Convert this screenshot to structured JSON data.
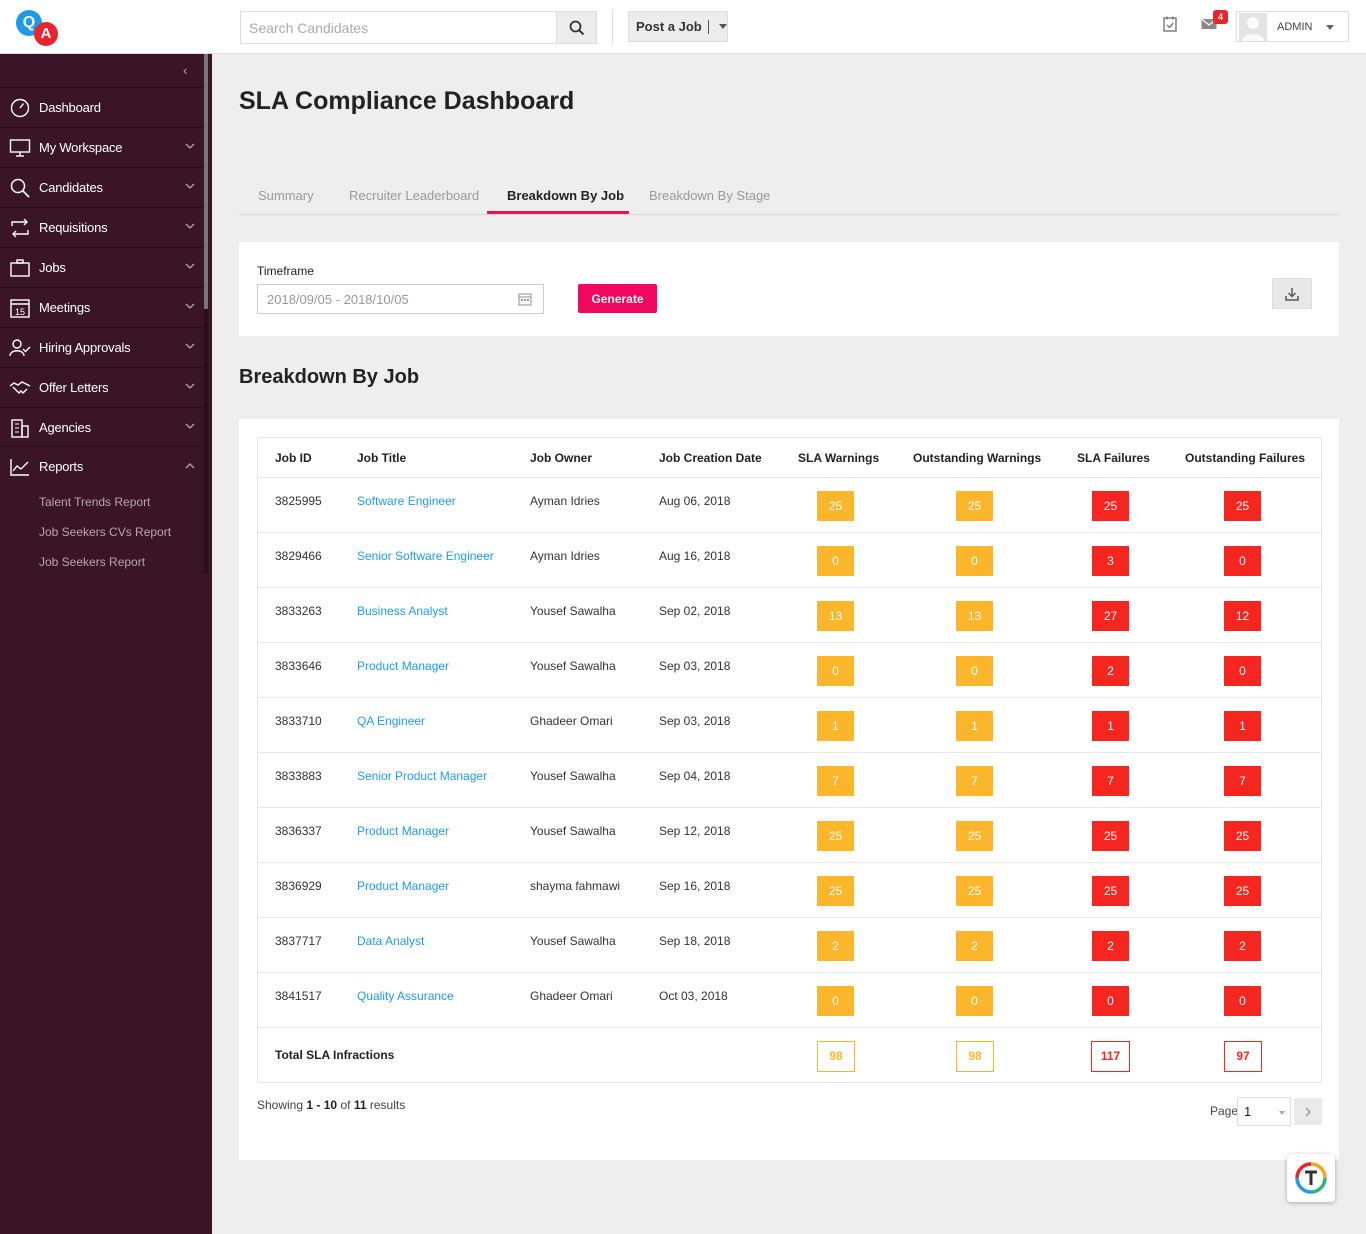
{
  "header": {
    "logo_left": "Q",
    "logo_right": "A",
    "search_placeholder": "Search Candidates",
    "post_job_label": "Post a Job",
    "notification_count": "4",
    "user_name": "ADMIN"
  },
  "sidebar": {
    "items": [
      {
        "label": "Dashboard",
        "icon": "gauge-icon"
      },
      {
        "label": "My Workspace",
        "icon": "monitor-icon"
      },
      {
        "label": "Candidates",
        "icon": "search-icon"
      },
      {
        "label": "Requisitions",
        "icon": "swap-icon"
      },
      {
        "label": "Jobs",
        "icon": "briefcase-icon"
      },
      {
        "label": "Meetings",
        "icon": "calendar-icon",
        "icon_text": "15"
      },
      {
        "label": "Hiring Approvals",
        "icon": "user-check-icon"
      },
      {
        "label": "Offer Letters",
        "icon": "handshake-icon"
      },
      {
        "label": "Agencies",
        "icon": "building-icon"
      },
      {
        "label": "Reports",
        "icon": "trend-icon"
      }
    ],
    "report_subitems": [
      "Talent Trends Report",
      "Job Seekers CVs Report",
      "Job Seekers Report"
    ]
  },
  "page": {
    "title": "SLA Compliance Dashboard",
    "tabs": [
      "Summary",
      "Recruiter Leaderboard",
      "Breakdown By Job",
      "Breakdown By Stage"
    ],
    "active_tab": "Breakdown By Job",
    "timeframe_label": "Timeframe",
    "timeframe_value": "2018/09/05 - 2018/10/05",
    "generate_label": "Generate",
    "section_title": "Breakdown By Job"
  },
  "table": {
    "columns": [
      "Job ID",
      "Job Title",
      "Job Owner",
      "Job Creation Date",
      "SLA Warnings",
      "Outstanding Warnings",
      "SLA Failures",
      "Outstanding Failures"
    ],
    "rows": [
      {
        "id": "3825995",
        "title": "Software Engineer",
        "owner": "Ayman Idries",
        "date": "Aug 06, 2018",
        "sla_w": "25",
        "out_w": "25",
        "sla_f": "25",
        "out_f": "25"
      },
      {
        "id": "3829466",
        "title": "Senior Software Engineer",
        "owner": "Ayman Idries",
        "date": "Aug 16, 2018",
        "sla_w": "0",
        "out_w": "0",
        "sla_f": "3",
        "out_f": "0"
      },
      {
        "id": "3833263",
        "title": "Business Analyst",
        "owner": "Yousef Sawalha",
        "date": "Sep 02, 2018",
        "sla_w": "13",
        "out_w": "13",
        "sla_f": "27",
        "out_f": "12"
      },
      {
        "id": "3833646",
        "title": "Product Manager",
        "owner": "Yousef Sawalha",
        "date": "Sep 03, 2018",
        "sla_w": "0",
        "out_w": "0",
        "sla_f": "2",
        "out_f": "0"
      },
      {
        "id": "3833710",
        "title": "QA Engineer",
        "owner": "Ghadeer Omari",
        "date": "Sep 03, 2018",
        "sla_w": "1",
        "out_w": "1",
        "sla_f": "1",
        "out_f": "1"
      },
      {
        "id": "3833883",
        "title": "Senior Product Manager",
        "owner": "Yousef Sawalha",
        "date": "Sep 04, 2018",
        "sla_w": "7",
        "out_w": "7",
        "sla_f": "7",
        "out_f": "7"
      },
      {
        "id": "3836337",
        "title": "Product Manager",
        "owner": "Yousef Sawalha",
        "date": "Sep 12, 2018",
        "sla_w": "25",
        "out_w": "25",
        "sla_f": "25",
        "out_f": "25"
      },
      {
        "id": "3836929",
        "title": "Product Manager",
        "owner": "shayma fahmawi",
        "date": "Sep 16, 2018",
        "sla_w": "25",
        "out_w": "25",
        "sla_f": "25",
        "out_f": "25"
      },
      {
        "id": "3837717",
        "title": "Data Analyst",
        "owner": "Yousef Sawalha",
        "date": "Sep 18, 2018",
        "sla_w": "2",
        "out_w": "2",
        "sla_f": "2",
        "out_f": "2"
      },
      {
        "id": "3841517",
        "title": "Quality Assurance",
        "owner": "Ghadeer Omari",
        "date": "Oct 03, 2018",
        "sla_w": "0",
        "out_w": "0",
        "sla_f": "0",
        "out_f": "0"
      }
    ],
    "totals": {
      "label": "Total SLA Infractions",
      "sla_w": "98",
      "out_w": "98",
      "sla_f": "117",
      "out_f": "97"
    }
  },
  "pagination": {
    "showing_prefix": "Showing",
    "range_start": "1",
    "range_sep": "-",
    "range_end": "10",
    "of_text": "of",
    "total": "11",
    "results_text": "results",
    "page_label": "Page",
    "page_value": "1"
  },
  "colors": {
    "sidebar_bg": "#3a1525",
    "accent": "#f0085e",
    "warning": "#fbb62c",
    "failure": "#f5261f",
    "link": "#1e9be8"
  }
}
